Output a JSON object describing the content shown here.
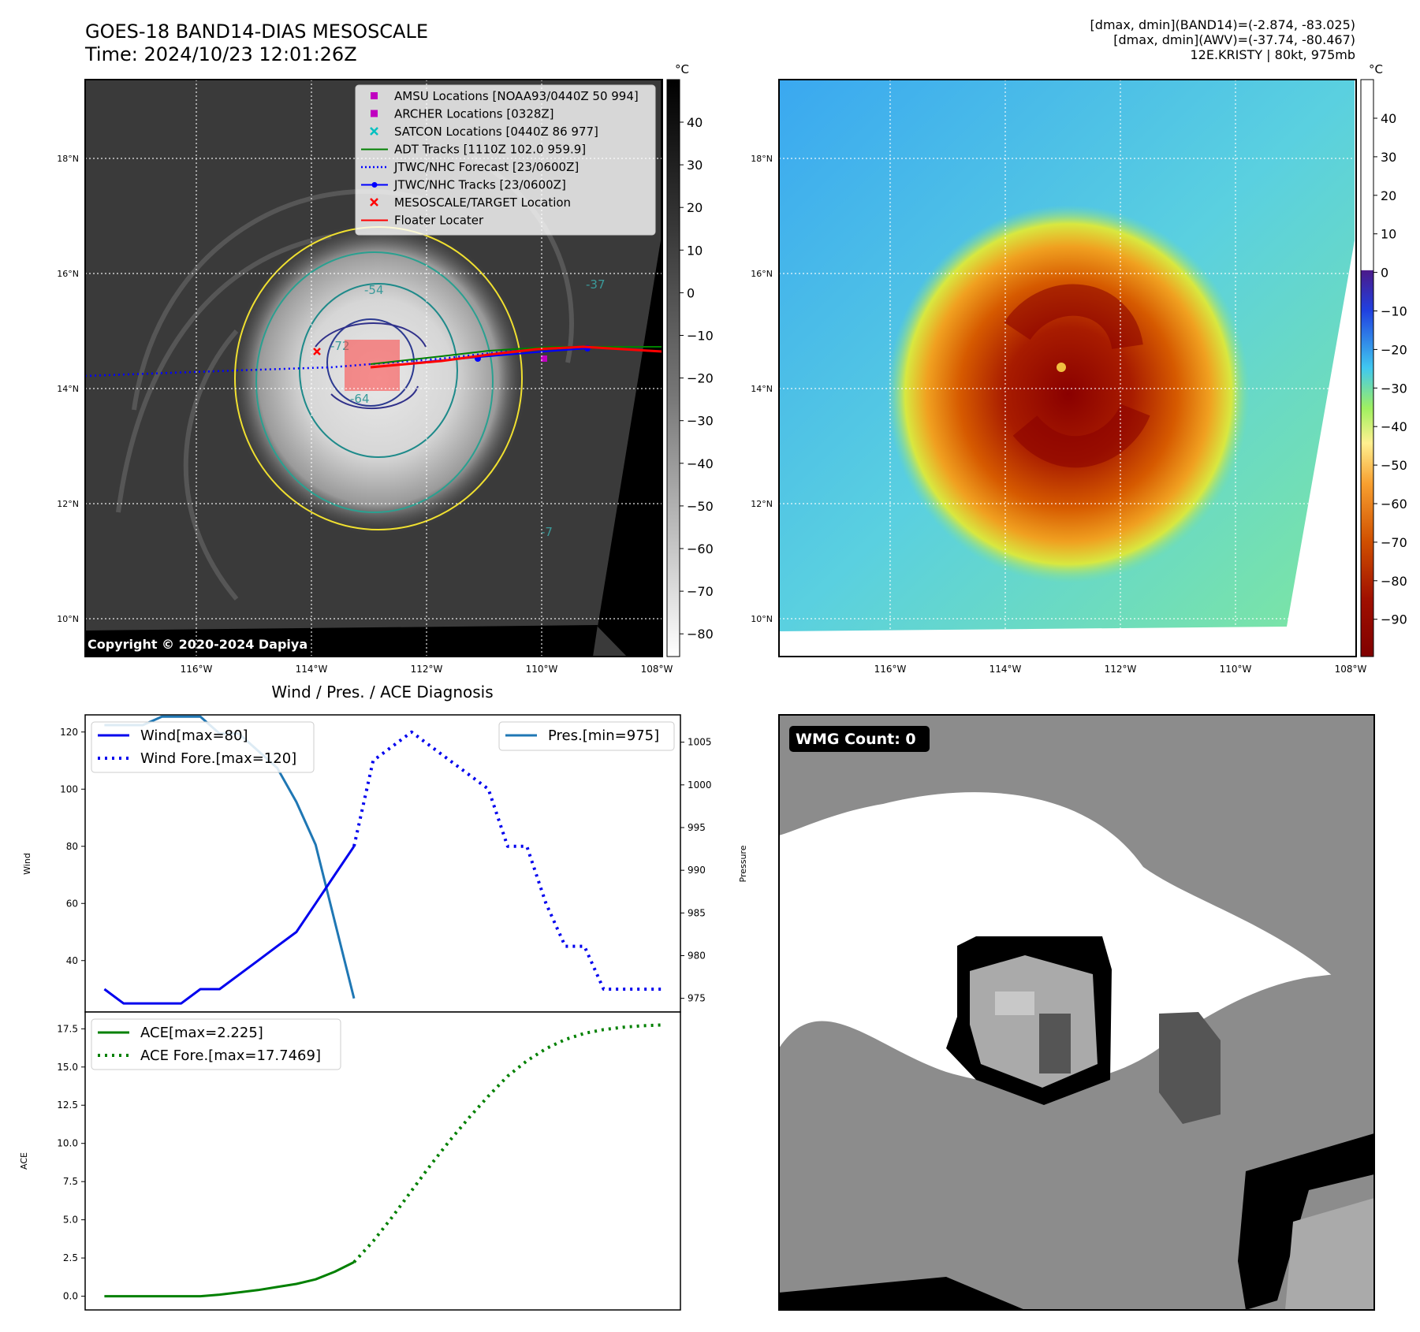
{
  "header": {
    "title_line1": "GOES-18 BAND14-DIAS MESOSCALE",
    "title_line2": "Time: 2024/10/23 12:01:26Z",
    "info_line1": "[dmax, dmin](BAND14)=(-2.874, -83.025)",
    "info_line2": "[dmax, dmin](AWV)=(-37.74, -80.467)",
    "info_line3": "12E.KRISTY | 80kt, 975mb"
  },
  "map_panels": {
    "lat_labels": [
      "18°N",
      "16°N",
      "14°N",
      "12°N",
      "10°N"
    ],
    "lon_labels": [
      "116°W",
      "114°W",
      "112°W",
      "110°W",
      "108°W"
    ],
    "copyright": "Copyright © 2020-2024 Dapiya",
    "contour_labels": [
      "-54",
      "-64",
      "-37",
      "-72",
      "-7"
    ]
  },
  "ir_panel": {
    "colorbar_unit": "°C",
    "colorbar_ticks": [
      "40",
      "30",
      "20",
      "10",
      "0",
      "−10",
      "−20",
      "−30",
      "−40",
      "−50",
      "−60",
      "−70",
      "−80"
    ],
    "legend": [
      {
        "label": "AMSU Locations [NOAA93/0440Z 50 994]",
        "marker": "square",
        "color": "#c000c0"
      },
      {
        "label": "ARCHER Locations [0328Z]",
        "marker": "square",
        "color": "#c000c0"
      },
      {
        "label": "SATCON Locations [0440Z 86 977]",
        "marker": "x",
        "color": "#00c0c0"
      },
      {
        "label": "ADT Tracks [1110Z 102.0 959.9]",
        "marker": "line",
        "color": "#008000"
      },
      {
        "label": "JTWC/NHC Forecast [23/0600Z]",
        "marker": "dotted",
        "color": "#0000ff"
      },
      {
        "label": "JTWC/NHC Tracks [23/0600Z]",
        "marker": "line-dot",
        "color": "#0000ff"
      },
      {
        "label": "MESOSCALE/TARGET Location",
        "marker": "x",
        "color": "#ff0000"
      },
      {
        "label": "Floater Locater",
        "marker": "line",
        "color": "#ff0000"
      }
    ]
  },
  "enh_panel": {
    "colorbar_unit": "°C",
    "colorbar_ticks": [
      "40",
      "30",
      "20",
      "10",
      "0",
      "−10",
      "−20",
      "−30",
      "−40",
      "−50",
      "−60",
      "−70",
      "−80",
      "−90"
    ]
  },
  "wmg_panel": {
    "badge": "WMG Count: 0"
  },
  "colors": {
    "wind": "#0000ee",
    "pressure": "#1f77b4",
    "ace": "#008000",
    "floater": "#ff0000"
  },
  "chart_data": [
    {
      "type": "line",
      "title": "Wind / Pres. / ACE Diagnosis",
      "ylabel": "Wind",
      "ylabel_right": "Pressure",
      "ylim": [
        22,
        126
      ],
      "ylim_right": [
        973.4,
        1008.2
      ],
      "y_ticks": [
        40,
        60,
        80,
        100,
        120
      ],
      "y_ticks_right": [
        975,
        980,
        985,
        990,
        995,
        1000,
        1005
      ],
      "xlim": [
        -1,
        30
      ],
      "legend_left": "upper left",
      "legend_right": "upper right",
      "series": [
        {
          "name": "Wind[max=80]",
          "axis": "left",
          "style": "solid",
          "x": [
            0,
            1,
            2,
            3,
            4,
            5,
            6,
            7,
            8,
            9,
            10,
            11,
            12,
            13
          ],
          "y": [
            30,
            25,
            25,
            25,
            25,
            30,
            30,
            35,
            40,
            45,
            50,
            60,
            70,
            80
          ]
        },
        {
          "name": "Wind Fore.[max=120]",
          "axis": "left",
          "style": "dotted",
          "x": [
            13,
            14,
            15,
            16,
            17,
            18,
            19,
            20,
            21,
            22,
            23,
            24,
            25,
            26,
            27,
            28,
            29
          ],
          "y": [
            80,
            110,
            115,
            120,
            115,
            110,
            105,
            100,
            80,
            80,
            60,
            45,
            45,
            30,
            30,
            30,
            30
          ]
        },
        {
          "name": "Pres.[min=975]",
          "axis": "right",
          "style": "solid",
          "x": [
            0,
            1,
            2,
            3,
            4,
            5,
            6,
            7,
            8,
            9,
            10,
            11,
            12,
            13
          ],
          "y": [
            1007,
            1007,
            1007,
            1008,
            1008,
            1008,
            1006,
            1006,
            1004,
            1002,
            998,
            993,
            984,
            975
          ]
        }
      ]
    },
    {
      "type": "line",
      "ylabel": "ACE",
      "ylim": [
        -0.9,
        18.6
      ],
      "y_ticks": [
        0.0,
        2.5,
        5.0,
        7.5,
        10.0,
        12.5,
        15.0,
        17.5
      ],
      "xlim": [
        -1,
        30
      ],
      "legend": "upper left",
      "series": [
        {
          "name": "ACE[max=2.225]",
          "style": "solid",
          "x": [
            0,
            1,
            2,
            3,
            4,
            5,
            6,
            7,
            8,
            9,
            10,
            11,
            12,
            13
          ],
          "y": [
            0,
            0,
            0,
            0,
            0,
            0,
            0.1,
            0.25,
            0.4,
            0.6,
            0.8,
            1.1,
            1.6,
            2.225
          ]
        },
        {
          "name": "ACE Fore.[max=17.7469]",
          "style": "dotted",
          "x": [
            13,
            14,
            15,
            16,
            17,
            18,
            19,
            20,
            21,
            22,
            23,
            24,
            25,
            26,
            27,
            28,
            29
          ],
          "y": [
            2.225,
            3.6,
            5.2,
            6.9,
            8.6,
            10.2,
            11.7,
            13.1,
            14.4,
            15.4,
            16.2,
            16.8,
            17.2,
            17.45,
            17.6,
            17.7,
            17.7469
          ]
        }
      ]
    }
  ]
}
